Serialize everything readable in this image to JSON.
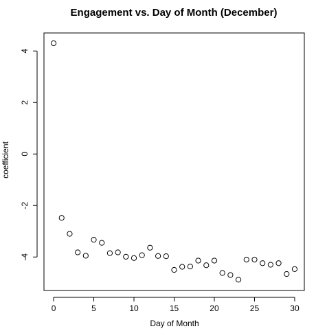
{
  "chart_data": {
    "type": "scatter",
    "title": "Engagement vs. Day of Month (December)",
    "xlabel": "Day of Month",
    "ylabel": "coefficient",
    "xlim": [
      -1.2,
      31.2
    ],
    "ylim": [
      -5.3,
      4.7
    ],
    "x_ticks": [
      0,
      5,
      10,
      15,
      20,
      25,
      30
    ],
    "y_ticks": [
      4,
      2,
      0,
      -2,
      -4
    ],
    "x_tick_labels": [
      "0",
      "5",
      "10",
      "15",
      "20",
      "25",
      "30"
    ],
    "y_tick_labels": [
      "4",
      "2",
      "0",
      "-2",
      "-4"
    ],
    "grid": false,
    "marker": "open-circle",
    "series": [
      {
        "x": [
          0,
          1,
          2,
          3,
          4,
          5,
          6,
          7,
          8,
          9,
          10,
          11,
          12,
          13,
          14,
          15,
          16,
          17,
          18,
          19,
          20,
          21,
          22,
          23,
          24,
          25,
          26,
          27,
          28,
          29,
          30
        ],
        "y": [
          4.3,
          -2.48,
          -3.1,
          -3.82,
          -3.95,
          -3.33,
          -3.45,
          -3.85,
          -3.82,
          -3.99,
          -4.04,
          -3.93,
          -3.64,
          -3.96,
          -3.97,
          -4.5,
          -4.38,
          -4.37,
          -4.14,
          -4.32,
          -4.14,
          -4.62,
          -4.7,
          -4.88,
          -4.1,
          -4.1,
          -4.24,
          -4.3,
          -4.24,
          -4.66,
          -4.47
        ]
      }
    ],
    "colors": {
      "points": "#000000",
      "axes": "#000000",
      "background": "#ffffff"
    }
  }
}
